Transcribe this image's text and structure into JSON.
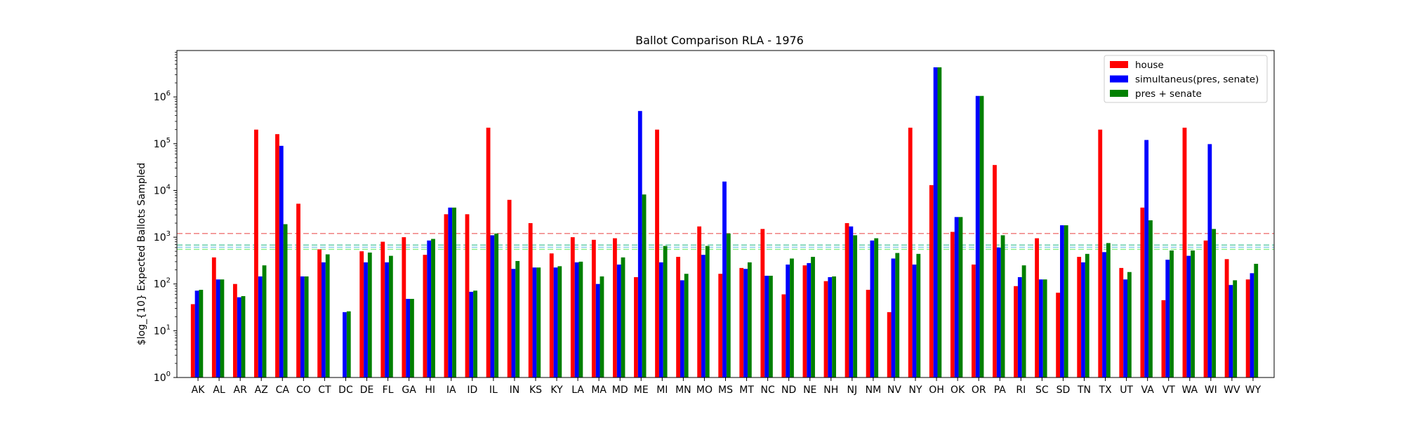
{
  "chart_data": {
    "type": "bar",
    "title": "Ballot Comparison RLA - 1976",
    "xlabel": "",
    "ylabel": "$log_{10} Expected Ballots Sampled",
    "yscale": "log",
    "ylim": [
      1,
      10000000
    ],
    "y_ticks": [
      {
        "base": "10",
        "exp": "0"
      },
      {
        "base": "10",
        "exp": "1"
      },
      {
        "base": "10",
        "exp": "2"
      },
      {
        "base": "10",
        "exp": "3"
      },
      {
        "base": "10",
        "exp": "4"
      },
      {
        "base": "10",
        "exp": "5"
      },
      {
        "base": "10",
        "exp": "6"
      }
    ],
    "legend_position": "upper-right",
    "categories": [
      "AK",
      "AL",
      "AR",
      "AZ",
      "CA",
      "CO",
      "CT",
      "DC",
      "DE",
      "FL",
      "GA",
      "HI",
      "IA",
      "ID",
      "IL",
      "IN",
      "KS",
      "KY",
      "LA",
      "MA",
      "MD",
      "ME",
      "MI",
      "MN",
      "MO",
      "MS",
      "MT",
      "NC",
      "ND",
      "NE",
      "NH",
      "NJ",
      "NM",
      "NV",
      "NY",
      "OH",
      "OK",
      "OR",
      "PA",
      "RI",
      "SC",
      "SD",
      "TN",
      "TX",
      "UT",
      "VA",
      "VT",
      "WA",
      "WI",
      "WV",
      "WY"
    ],
    "series": [
      {
        "name": "house",
        "color": "#ff0000",
        "values": [
          37,
          370,
          100,
          200000,
          160000,
          5200,
          550,
          null,
          500,
          800,
          1000,
          420,
          3100,
          3100,
          220000,
          6300,
          2000,
          450,
          1000,
          880,
          950,
          140,
          200000,
          380,
          1700,
          165,
          220,
          1500,
          60,
          250,
          115,
          2000,
          75,
          25,
          220000,
          13000,
          1300,
          260,
          35000,
          90,
          950,
          65,
          380,
          200000,
          220,
          4300,
          45,
          220000,
          850,
          340,
          125
        ]
      },
      {
        "name": "simultaneus(pres, senate)",
        "color": "#0000ff",
        "values": [
          72,
          125,
          52,
          145,
          90000,
          145,
          290,
          25,
          290,
          290,
          48,
          850,
          4300,
          68,
          1100,
          210,
          225,
          225,
          290,
          100,
          260,
          500000,
          290,
          120,
          420,
          15500,
          210,
          150,
          260,
          280,
          140,
          1700,
          850,
          350,
          260,
          4300000,
          2700,
          1050000,
          600,
          140,
          125,
          1800,
          290,
          480,
          125,
          120000,
          330,
          400,
          98000,
          95,
          170
        ]
      },
      {
        "name": "pres + senate",
        "color": "#008000",
        "values": [
          75,
          125,
          55,
          250,
          1900,
          145,
          430,
          26,
          470,
          400,
          48,
          920,
          4300,
          72,
          1200,
          310,
          225,
          240,
          300,
          145,
          370,
          8200,
          650,
          165,
          650,
          1200,
          290,
          150,
          350,
          380,
          145,
          1100,
          950,
          460,
          440,
          4300000,
          2700,
          1050000,
          1100,
          250,
          125,
          1800,
          440,
          750,
          180,
          2300,
          520,
          520,
          1500,
          120,
          270
        ]
      }
    ],
    "reference_lines": [
      {
        "value": 1200,
        "color": "#f08080"
      },
      {
        "value": 680,
        "color": "#66cdaa"
      },
      {
        "value": 610,
        "color": "#87ceeb"
      },
      {
        "value": 550,
        "color": "#90ee90"
      }
    ]
  }
}
